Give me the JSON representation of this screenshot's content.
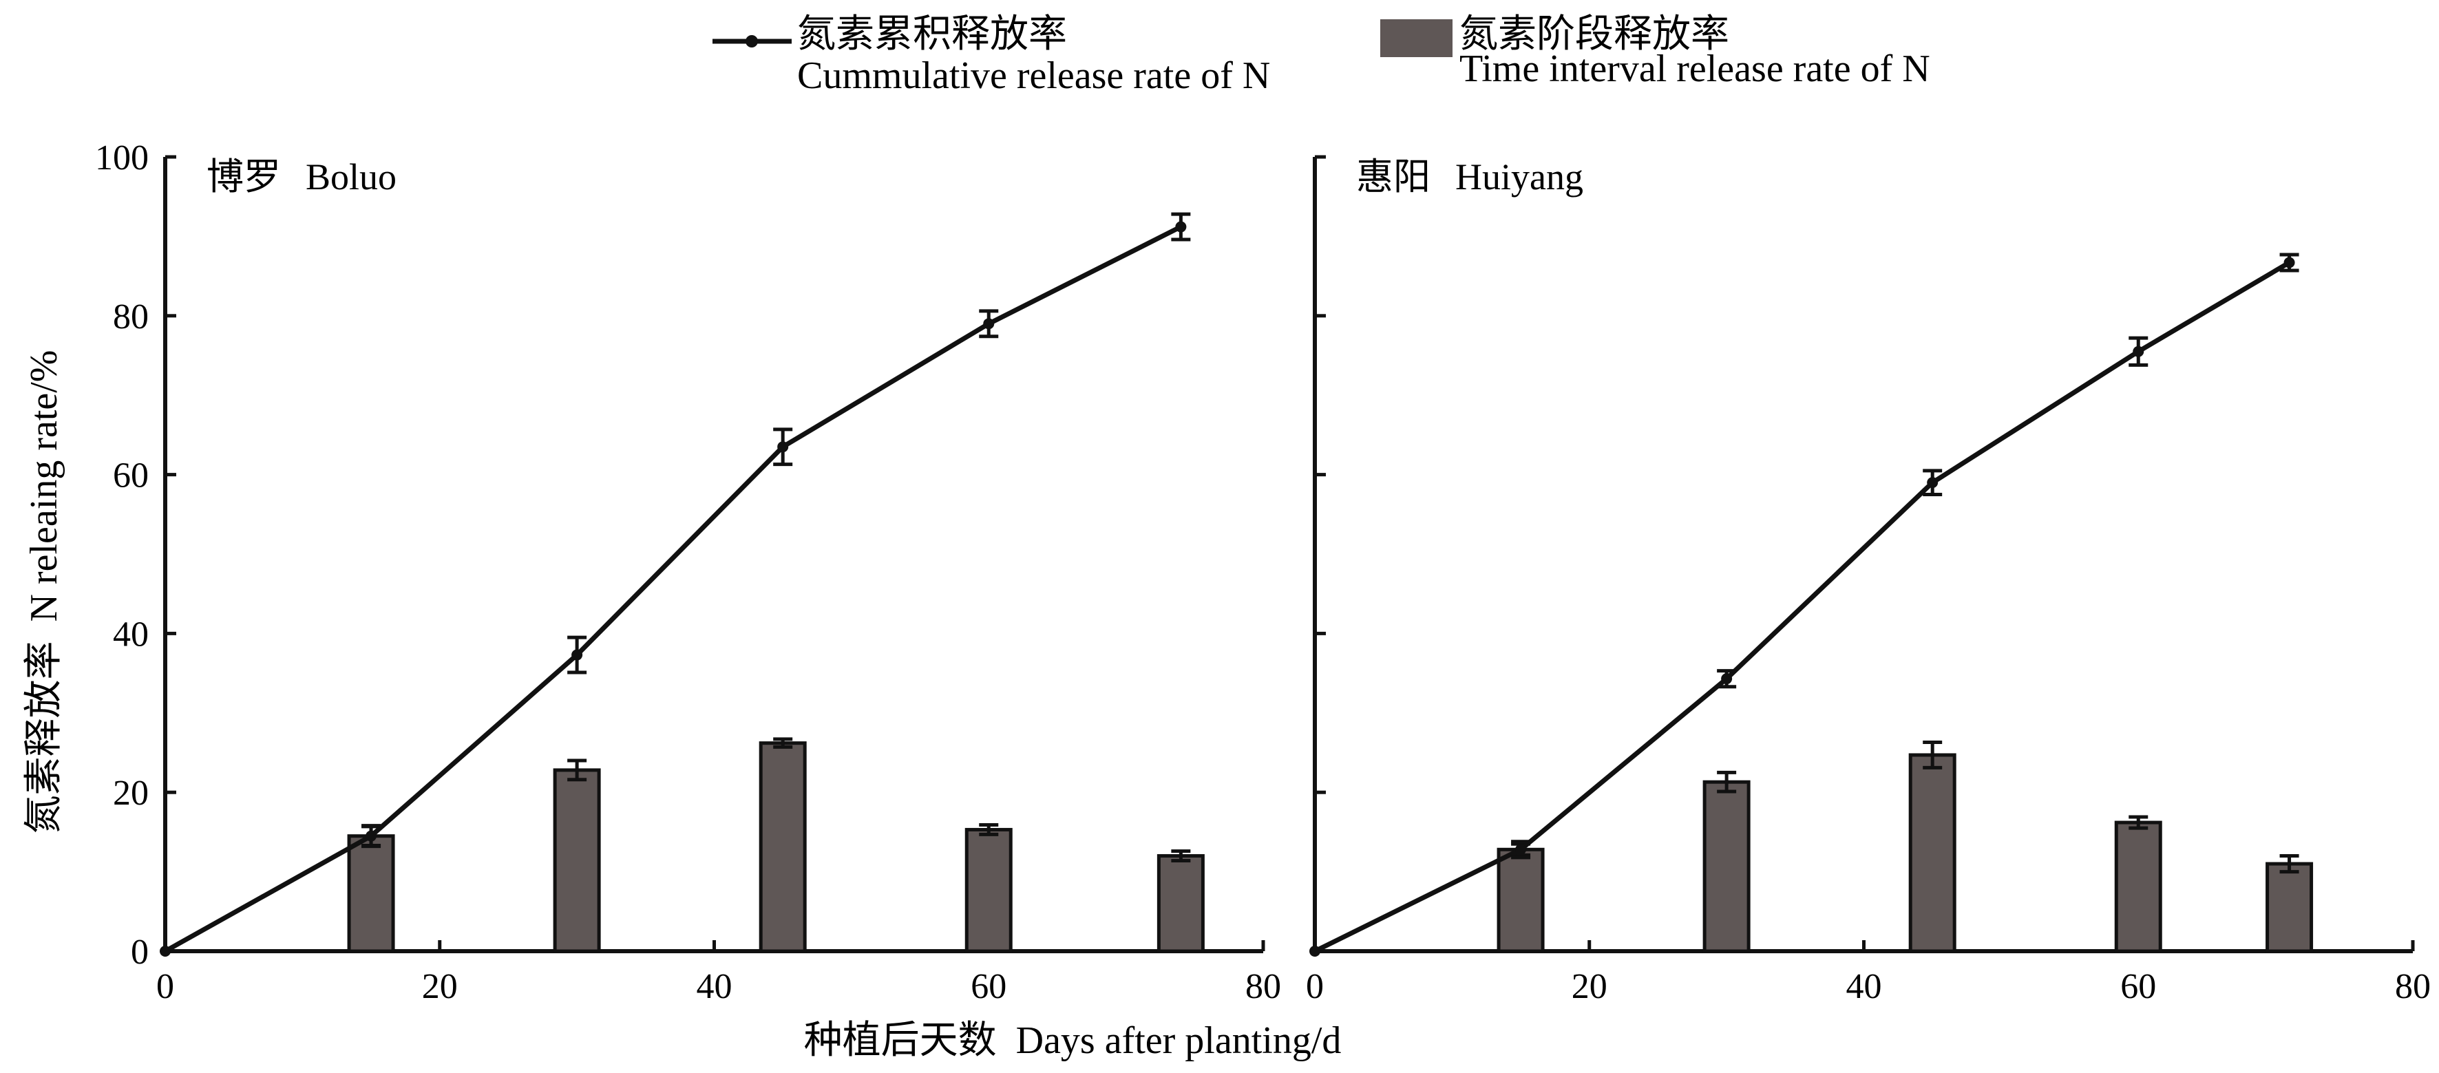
{
  "legend": {
    "cumulative_zh": "氮素累积释放率",
    "cumulative_en": "Cummulative release rate of N",
    "interval_zh": "氮素阶段释放率",
    "interval_en": "Time interval release rate of N"
  },
  "y_axis": {
    "label_zh": "氮素释放率",
    "label_en": "N releaing rate/%"
  },
  "x_axis": {
    "label_zh": "种植后天数",
    "label_en": "Days after planting/d"
  },
  "colors": {
    "bar": "#5f5756",
    "line": "#111111"
  },
  "chart_data": [
    {
      "type": "line+bar",
      "panel_zh": "博罗",
      "panel_en": "Boluo",
      "xlim": [
        0,
        80
      ],
      "ylim": [
        0,
        100
      ],
      "xticks": [
        0,
        20,
        40,
        60,
        80
      ],
      "yticks": [
        0,
        20,
        40,
        60,
        80,
        100
      ],
      "series": [
        {
          "name": "Cummulative release rate of N",
          "kind": "line",
          "x": [
            0,
            15,
            30,
            45,
            60,
            74
          ],
          "y": [
            0,
            14.5,
            37.3,
            63.5,
            79.0,
            91.2
          ],
          "error": [
            0,
            1.3,
            2.2,
            2.2,
            1.6,
            1.6
          ]
        },
        {
          "name": "Time interval release rate of N",
          "kind": "bar",
          "x": [
            15,
            30,
            45,
            60,
            74
          ],
          "y": [
            14.5,
            22.8,
            26.2,
            15.3,
            12.0
          ],
          "error": [
            1.2,
            1.2,
            0.5,
            0.6,
            0.6
          ]
        }
      ]
    },
    {
      "type": "line+bar",
      "panel_zh": "惠阳",
      "panel_en": "Huiyang",
      "xlim": [
        0,
        80
      ],
      "ylim": [
        0,
        100
      ],
      "xticks": [
        0,
        20,
        40,
        60,
        80
      ],
      "yticks": [
        0,
        20,
        40,
        60,
        80,
        100
      ],
      "series": [
        {
          "name": "Cummulative release rate of N",
          "kind": "line",
          "x": [
            0,
            15,
            30,
            45,
            60,
            71
          ],
          "y": [
            0,
            12.8,
            34.3,
            59.0,
            75.5,
            86.7
          ],
          "error": [
            0,
            1.0,
            1.0,
            1.5,
            1.7,
            1.0
          ]
        },
        {
          "name": "Time interval release rate of N",
          "kind": "bar",
          "x": [
            15,
            30,
            45,
            60,
            71
          ],
          "y": [
            12.8,
            21.3,
            24.7,
            16.2,
            11.0
          ],
          "error": [
            0.7,
            1.2,
            1.6,
            0.7,
            1.0
          ]
        }
      ]
    }
  ]
}
